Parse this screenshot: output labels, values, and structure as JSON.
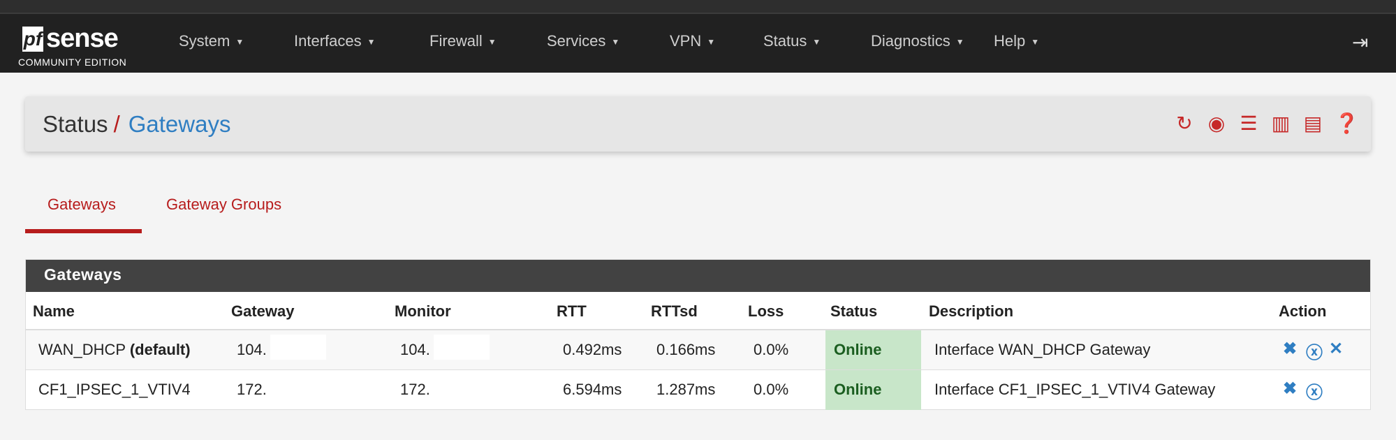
{
  "brand": {
    "logo_text": "pfsense",
    "edition": "COMMUNITY EDITION"
  },
  "nav": [
    "System",
    "Interfaces",
    "Firewall",
    "Services",
    "VPN",
    "Status",
    "Diagnostics",
    "Help"
  ],
  "breadcrumb": {
    "parent": "Status",
    "separator": "/",
    "current": "Gateways"
  },
  "toolbar_icons": [
    "refresh-icon",
    "stop-icon",
    "sliders-icon",
    "chart-icon",
    "list-icon",
    "help-icon"
  ],
  "tabs": [
    {
      "label": "Gateways",
      "active": true
    },
    {
      "label": "Gateway Groups",
      "active": false
    }
  ],
  "panel": {
    "title": "Gateways",
    "columns": [
      "Name",
      "Gateway",
      "Monitor",
      "RTT",
      "RTTsd",
      "Loss",
      "Status",
      "Description",
      "Action"
    ],
    "rows": [
      {
        "name": "WAN_DHCP",
        "name_suffix": "(default)",
        "gateway": "104.",
        "monitor": "104.",
        "rtt": "0.492ms",
        "rttsd": "0.166ms",
        "loss": "0.0%",
        "status": "Online",
        "description": "Interface WAN_DHCP Gateway"
      },
      {
        "name": "CF1_IPSEC_1_VTIV4",
        "name_suffix": "",
        "gateway": "172.",
        "monitor": "172.",
        "rtt": "6.594ms",
        "rttsd": "1.287ms",
        "loss": "0.0%",
        "status": "Online",
        "description": "Interface CF1_IPSEC_1_VTIV4 Gateway"
      }
    ]
  },
  "colors": {
    "accent": "#b71c1c",
    "link": "#2f7ec2",
    "online_bg": "#c8e6c9",
    "online_text": "#1b5e20"
  }
}
